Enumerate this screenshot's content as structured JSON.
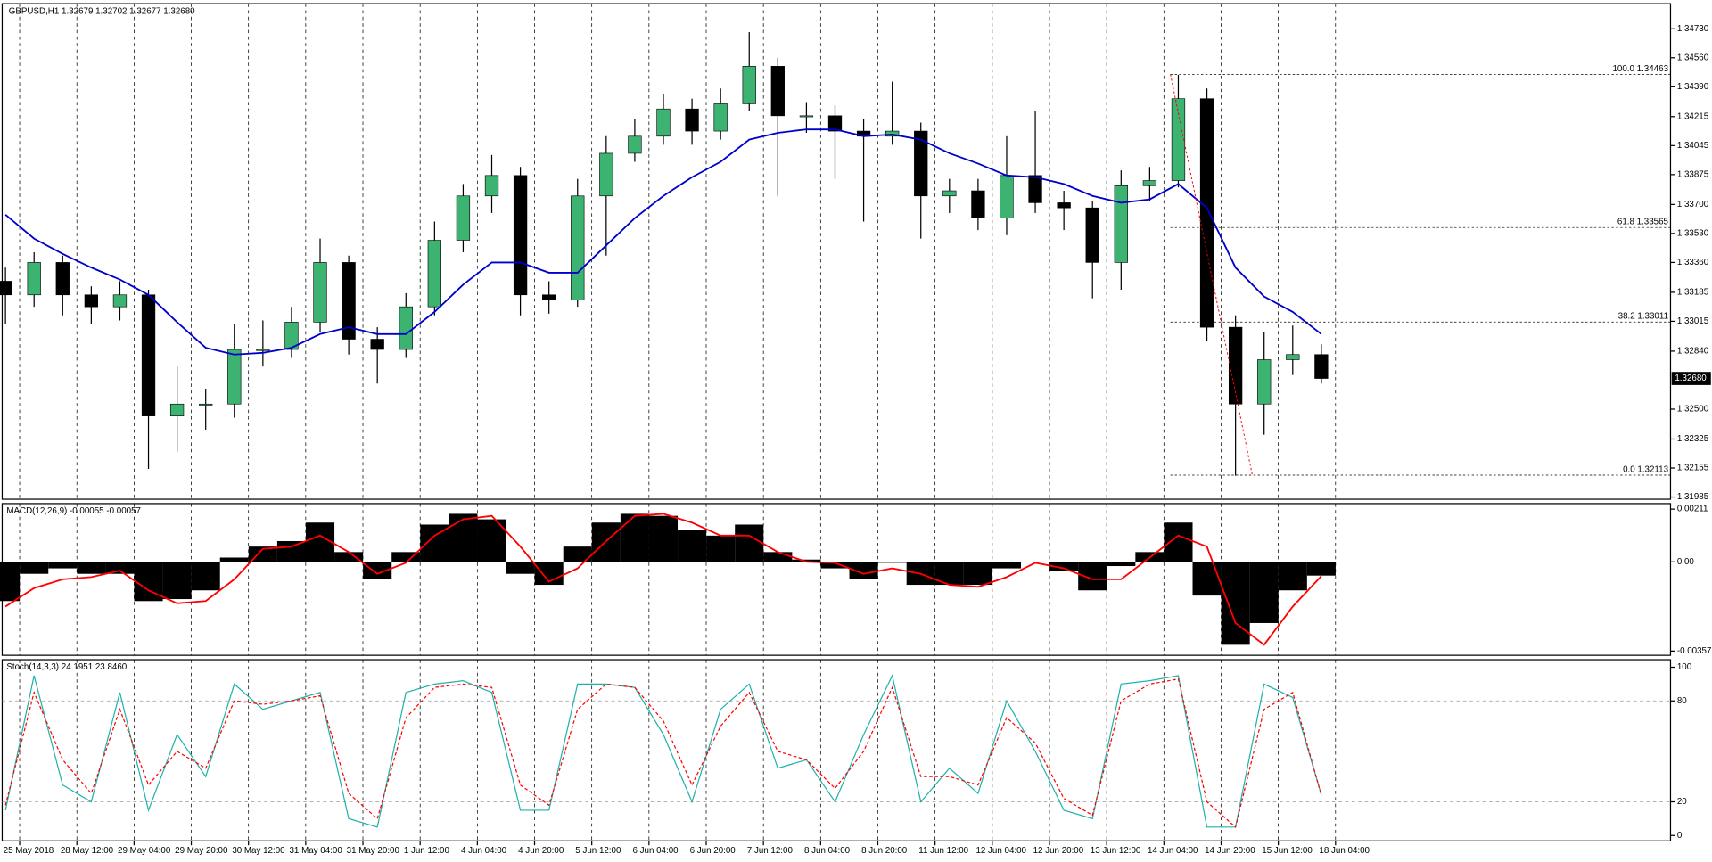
{
  "chart_data": [
    {
      "type": "candlestick",
      "title": "GBPUSD,H1  1.32679 1.32702 1.32677 1.32680",
      "categories": [
        "25 May 2018",
        null,
        "28 May 12:00",
        null,
        "29 May 04:00",
        null,
        "29 May 20:00",
        null,
        "30 May 12:00",
        null,
        "31 May 04:00",
        null,
        "31 May 20:00",
        null,
        "1 Jun 12:00",
        null,
        "4 Jun 04:00",
        null,
        "4 Jun 20:00",
        null,
        "5 Jun 12:00",
        null,
        "6 Jun 04:00",
        null,
        "6 Jun 20:00",
        null,
        "7 Jun 12:00",
        null,
        "8 Jun 04:00",
        null,
        "8 Jun 20:00",
        null,
        "11 Jun 12:00",
        null,
        "12 Jun 04:00",
        null,
        "12 Jun 20:00",
        null,
        "13 Jun 12:00",
        null,
        "14 Jun 04:00",
        null,
        "14 Jun 20:00",
        null,
        "15 Jun 12:00",
        null,
        "18 Jun 04:00"
      ],
      "open": [
        1.3325,
        1.3317,
        1.3336,
        1.3317,
        1.331,
        1.3317,
        1.3246,
        1.3253,
        1.3253,
        1.3285,
        1.3285,
        1.3301,
        1.3336,
        1.3291,
        1.3285,
        1.331,
        1.3349,
        1.3375,
        1.3387,
        1.3317,
        1.3314,
        1.3375,
        1.34,
        1.341,
        1.3426,
        1.3413,
        1.3429,
        1.3451,
        1.3422,
        1.3422,
        1.3413,
        1.341,
        1.3413,
        1.3375,
        1.3378,
        1.3362,
        1.3387,
        1.3371,
        1.3368,
        1.3336,
        1.3381,
        1.3384,
        1.3432,
        1.3298,
        1.3253,
        1.3279,
        1.3282
      ],
      "high": [
        1.3333,
        1.3342,
        1.334,
        1.3322,
        1.3325,
        1.332,
        1.3275,
        1.3262,
        1.33,
        1.3302,
        1.331,
        1.335,
        1.334,
        1.3298,
        1.3318,
        1.336,
        1.3382,
        1.3399,
        1.3392,
        1.3325,
        1.3385,
        1.341,
        1.342,
        1.3435,
        1.3432,
        1.3438,
        1.3471,
        1.3456,
        1.343,
        1.3428,
        1.342,
        1.3442,
        1.3418,
        1.3385,
        1.3385,
        1.341,
        1.3425,
        1.3378,
        1.3372,
        1.339,
        1.3392,
        1.3446,
        1.3438,
        1.3305,
        1.3295,
        1.3299,
        1.3288
      ],
      "low": [
        1.33,
        1.331,
        1.3305,
        1.33,
        1.3302,
        1.3215,
        1.3225,
        1.3238,
        1.3245,
        1.3275,
        1.328,
        1.3295,
        1.3282,
        1.3265,
        1.328,
        1.3305,
        1.3342,
        1.3365,
        1.3305,
        1.3306,
        1.331,
        1.334,
        1.3395,
        1.3405,
        1.3405,
        1.3408,
        1.3425,
        1.3375,
        1.3412,
        1.3385,
        1.336,
        1.3405,
        1.335,
        1.3365,
        1.3355,
        1.3352,
        1.3365,
        1.3355,
        1.3315,
        1.332,
        1.3372,
        1.338,
        1.329,
        1.3211,
        1.3235,
        1.327,
        1.3265
      ],
      "close": [
        1.3317,
        1.3336,
        1.3317,
        1.331,
        1.3317,
        1.3246,
        1.3253,
        1.3253,
        1.3285,
        1.3285,
        1.3301,
        1.3336,
        1.3291,
        1.3285,
        1.331,
        1.3349,
        1.3375,
        1.3387,
        1.3317,
        1.3314,
        1.3375,
        1.34,
        1.341,
        1.3426,
        1.3413,
        1.3429,
        1.3451,
        1.3422,
        1.3422,
        1.3413,
        1.341,
        1.3413,
        1.3375,
        1.3378,
        1.3362,
        1.3387,
        1.3371,
        1.3368,
        1.3336,
        1.3381,
        1.3384,
        1.3432,
        1.3298,
        1.3253,
        1.3279,
        1.3282,
        1.3268
      ],
      "up_color": "#3cb371",
      "down_color": "#000000",
      "ma": {
        "color": "#0000cc",
        "values": [
          1.3364,
          1.335,
          1.3341,
          1.3333,
          1.3326,
          1.3317,
          1.3301,
          1.3286,
          1.3282,
          1.3283,
          1.3286,
          1.3294,
          1.3298,
          1.3294,
          1.3294,
          1.3307,
          1.3323,
          1.3336,
          1.3336,
          1.333,
          1.333,
          1.3346,
          1.3362,
          1.3375,
          1.3386,
          1.3395,
          1.3408,
          1.3412,
          1.3414,
          1.3414,
          1.341,
          1.3411,
          1.3408,
          1.34,
          1.3394,
          1.3387,
          1.3386,
          1.3382,
          1.3375,
          1.3371,
          1.3373,
          1.3382,
          1.3368,
          1.3333,
          1.3316,
          1.3307,
          1.3294
        ]
      },
      "fib_levels": [
        {
          "value": 1.34463,
          "label": "100.0 1.34463"
        },
        {
          "value": 1.33565,
          "label": "61.8 1.33565"
        },
        {
          "value": 1.33011,
          "label": "38.2 1.33011"
        },
        {
          "value": 1.32113,
          "label": "0.0 1.32113"
        }
      ],
      "current_price": {
        "value": 1.3268,
        "label": "1.32680"
      },
      "ylim": [
        1.31972,
        1.34877
      ],
      "yticks": [
        {
          "value": 1.3473,
          "label": "1.34730"
        },
        {
          "value": 1.3456,
          "label": "1.34560"
        },
        {
          "value": 1.3439,
          "label": "1.34390"
        },
        {
          "value": 1.34215,
          "label": "1.34215"
        },
        {
          "value": 1.34045,
          "label": "1.34045"
        },
        {
          "value": 1.33875,
          "label": "1.33875"
        },
        {
          "value": 1.337,
          "label": "1.33700"
        },
        {
          "value": 1.3353,
          "label": "1.33530"
        },
        {
          "value": 1.3336,
          "label": "1.33360"
        },
        {
          "value": 1.33185,
          "label": "1.33185"
        },
        {
          "value": 1.33015,
          "label": "1.33015"
        },
        {
          "value": 1.3284,
          "label": "1.32840"
        },
        {
          "value": 1.325,
          "label": "1.32500"
        },
        {
          "value": 1.32325,
          "label": "1.32325"
        },
        {
          "value": 1.32155,
          "label": "1.32155"
        },
        {
          "value": 1.31985,
          "label": "1.31985"
        }
      ]
    },
    {
      "type": "macd",
      "title": "MACD(12,26,9) -0.00055 -0.00057",
      "values": [
        -0.00157,
        -0.00048,
        -0.00026,
        -0.00048,
        -0.00048,
        -0.00157,
        -0.00149,
        -0.00114,
        0.00017,
        0.00061,
        0.00083,
        0.00157,
        0.00039,
        -0.0007,
        0.00039,
        0.00149,
        0.00192,
        0.0017,
        -0.00048,
        -0.00092,
        0.00061,
        0.00157,
        0.00192,
        0.00184,
        0.00127,
        0.00105,
        0.00149,
        0.00039,
        9e-05,
        -0.00026,
        -0.0007,
        -4e-05,
        -0.00092,
        -0.00092,
        -0.00092,
        -0.00026,
        0,
        -0.00035,
        -0.00114,
        -0.00017,
        0.00039,
        0.00157,
        -0.00135,
        -0.00332,
        -0.00245,
        -0.00114,
        -0.00055
      ],
      "color": "#000000",
      "signal": {
        "color": "#ff0000",
        "values": [
          -0.00179,
          -0.00105,
          -0.0007,
          -0.00061,
          -0.00035,
          -0.00114,
          -0.00166,
          -0.00157,
          -0.0007,
          0.00052,
          0.00061,
          0.00105,
          0.00039,
          -0.00048,
          -4e-05,
          0.00105,
          0.0017,
          0.00184,
          0.00061,
          -0.00079,
          -0.00026,
          0.00083,
          0.00184,
          0.00192,
          0.00157,
          0.00105,
          0.00105,
          0.00039,
          0,
          -4e-05,
          -0.00048,
          -0.00026,
          -0.00048,
          -0.00092,
          -0.001,
          -0.00061,
          -4e-05,
          -0.00026,
          -0.0007,
          -0.0007,
          0.00017,
          0.00105,
          0.00061,
          -0.00245,
          -0.00332,
          -0.00179,
          -0.00057
        ]
      },
      "ylim": [
        -0.00374,
        0.00233
      ],
      "yticks": [
        0.00211,
        {
          "value": 0,
          "label": "0.00"
        },
        -0.00357
      ]
    },
    {
      "type": "line",
      "title": "Stoch(14,3,3) 24.1951 23.8460",
      "series": [
        {
          "color": "#20b2aa",
          "values": [
            15,
            95,
            30,
            20,
            85,
            15,
            60,
            35,
            90,
            75,
            80,
            85,
            10,
            5,
            85,
            90,
            92,
            85,
            15,
            15,
            90,
            90,
            88,
            60,
            20,
            75,
            90,
            40,
            45,
            20,
            60,
            95,
            20,
            40,
            25,
            80,
            50,
            15,
            10,
            90,
            92,
            95,
            5,
            5,
            90,
            82,
            24.1951
          ]
        },
        {
          "color": "#ff0000",
          "dashed": true,
          "values": [
            18,
            85,
            45,
            25,
            75,
            30,
            50,
            40,
            80,
            78,
            80,
            83,
            25,
            10,
            70,
            88,
            90,
            88,
            30,
            18,
            75,
            90,
            88,
            68,
            30,
            65,
            85,
            50,
            45,
            28,
            50,
            88,
            35,
            35,
            30,
            70,
            55,
            22,
            12,
            80,
            90,
            93,
            20,
            5,
            75,
            85,
            23.846
          ]
        }
      ],
      "levels": [
        80,
        20
      ],
      "ylim": [
        -3.2,
        104.5
      ],
      "yticks": [
        100,
        80,
        20,
        0
      ]
    }
  ]
}
